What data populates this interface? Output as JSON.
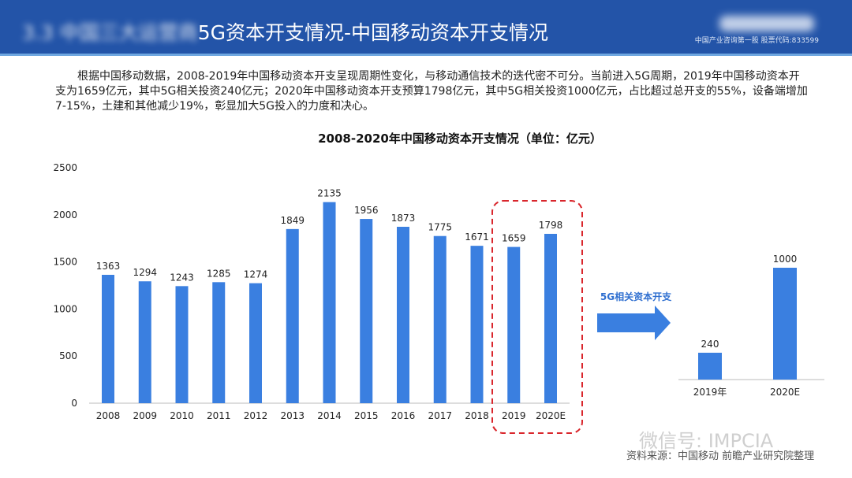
{
  "header": {
    "title_blurred_prefix": "3.3 中国三大运营商",
    "title": "5G资本开支情况-中国移动资本开支情况",
    "right_text": "中国产业咨询第一股 股票代码:833599"
  },
  "intro": "根据中国移动数据，2008-2019年中国移动资本开支呈现周期性变化，与移动通信技术的迭代密不可分。当前进入5G周期，2019年中国移动资本开支为1659亿元，其中5G相关投资240亿元；2020年中国移动资本开支预算1798亿元，其中5G相关投资1000亿元，占比超过总开支的55%，设备端增加7-15%，土建和其他减少19%，彰显加大5G投入的力度和决心。",
  "arrow_label": "5G相关资本开支",
  "watermark": "微信号: IMPCIA",
  "source": "资料来源：中国移动 前瞻产业研究院整理",
  "chart_data": [
    {
      "type": "bar",
      "title": "2008-2020年中国移动资本开支情况（单位：亿元）",
      "categories": [
        "2008",
        "2009",
        "2010",
        "2011",
        "2012",
        "2013",
        "2014",
        "2015",
        "2016",
        "2017",
        "2018",
        "2019",
        "2020E"
      ],
      "values": [
        1363,
        1294,
        1243,
        1285,
        1274,
        1849,
        2135,
        1956,
        1873,
        1775,
        1671,
        1659,
        1798
      ],
      "ylim": [
        0,
        2500
      ],
      "yticks": [
        0,
        500,
        1000,
        1500,
        2000,
        2500
      ],
      "grid": false,
      "highlight": [
        "2019",
        "2020E"
      ],
      "bar_color": "#3a7fe0",
      "highlight_color": "#d9262c"
    },
    {
      "type": "bar",
      "categories": [
        "2019年",
        "2020E"
      ],
      "values": [
        240,
        1000
      ],
      "bar_color": "#3a7fe0"
    }
  ]
}
